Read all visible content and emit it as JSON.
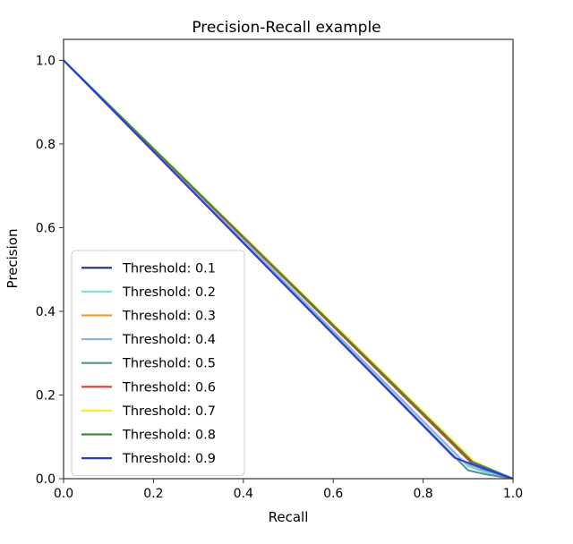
{
  "chart_data": {
    "type": "line",
    "title": "Precision-Recall example",
    "xlabel": "Recall",
    "ylabel": "Precision",
    "xlim": [
      0,
      1
    ],
    "ylim": [
      0,
      1.05
    ],
    "xticks": [
      "0.0",
      "0.2",
      "0.4",
      "0.6",
      "0.8",
      "1.0"
    ],
    "yticks": [
      "0.0",
      "0.2",
      "0.4",
      "0.6",
      "0.8",
      "1.0"
    ],
    "grid": false,
    "legend_position": "lower-left",
    "series": [
      {
        "name": "Threshold: 0.1",
        "color": "#1f2f7a",
        "x": [
          0,
          0.9,
          1.0
        ],
        "y": [
          1.0,
          0.03,
          0.0
        ]
      },
      {
        "name": "Threshold: 0.2",
        "color": "#7fe3dc",
        "x": [
          0,
          0.9,
          0.95,
          1.0
        ],
        "y": [
          1.0,
          0.03,
          0.01,
          0.0
        ]
      },
      {
        "name": "Threshold: 0.3",
        "color": "#f0a030",
        "x": [
          0,
          0.91,
          1.0
        ],
        "y": [
          1.0,
          0.035,
          0.0
        ]
      },
      {
        "name": "Threshold: 0.4",
        "color": "#8fb6d8",
        "x": [
          0,
          0.89,
          0.93,
          1.0
        ],
        "y": [
          1.0,
          0.04,
          0.02,
          0.0
        ]
      },
      {
        "name": "Threshold: 0.5",
        "color": "#4d9494",
        "x": [
          0,
          0.9,
          0.94,
          1.0
        ],
        "y": [
          1.0,
          0.02,
          0.01,
          0.0
        ]
      },
      {
        "name": "Threshold: 0.6",
        "color": "#e8382c",
        "x": [
          0,
          0.91,
          1.0
        ],
        "y": [
          1.0,
          0.035,
          0.0
        ]
      },
      {
        "name": "Threshold: 0.7",
        "color": "#f3ea3c",
        "x": [
          0,
          0.915,
          1.0
        ],
        "y": [
          1.0,
          0.04,
          0.0
        ]
      },
      {
        "name": "Threshold: 0.8",
        "color": "#3f8a3f",
        "x": [
          0,
          0.91,
          1.0
        ],
        "y": [
          1.0,
          0.04,
          0.0
        ]
      },
      {
        "name": "Threshold: 0.9",
        "color": "#2a36e8",
        "x": [
          0,
          0.87,
          0.92,
          1.0
        ],
        "y": [
          1.0,
          0.05,
          0.03,
          0.0
        ]
      }
    ]
  }
}
